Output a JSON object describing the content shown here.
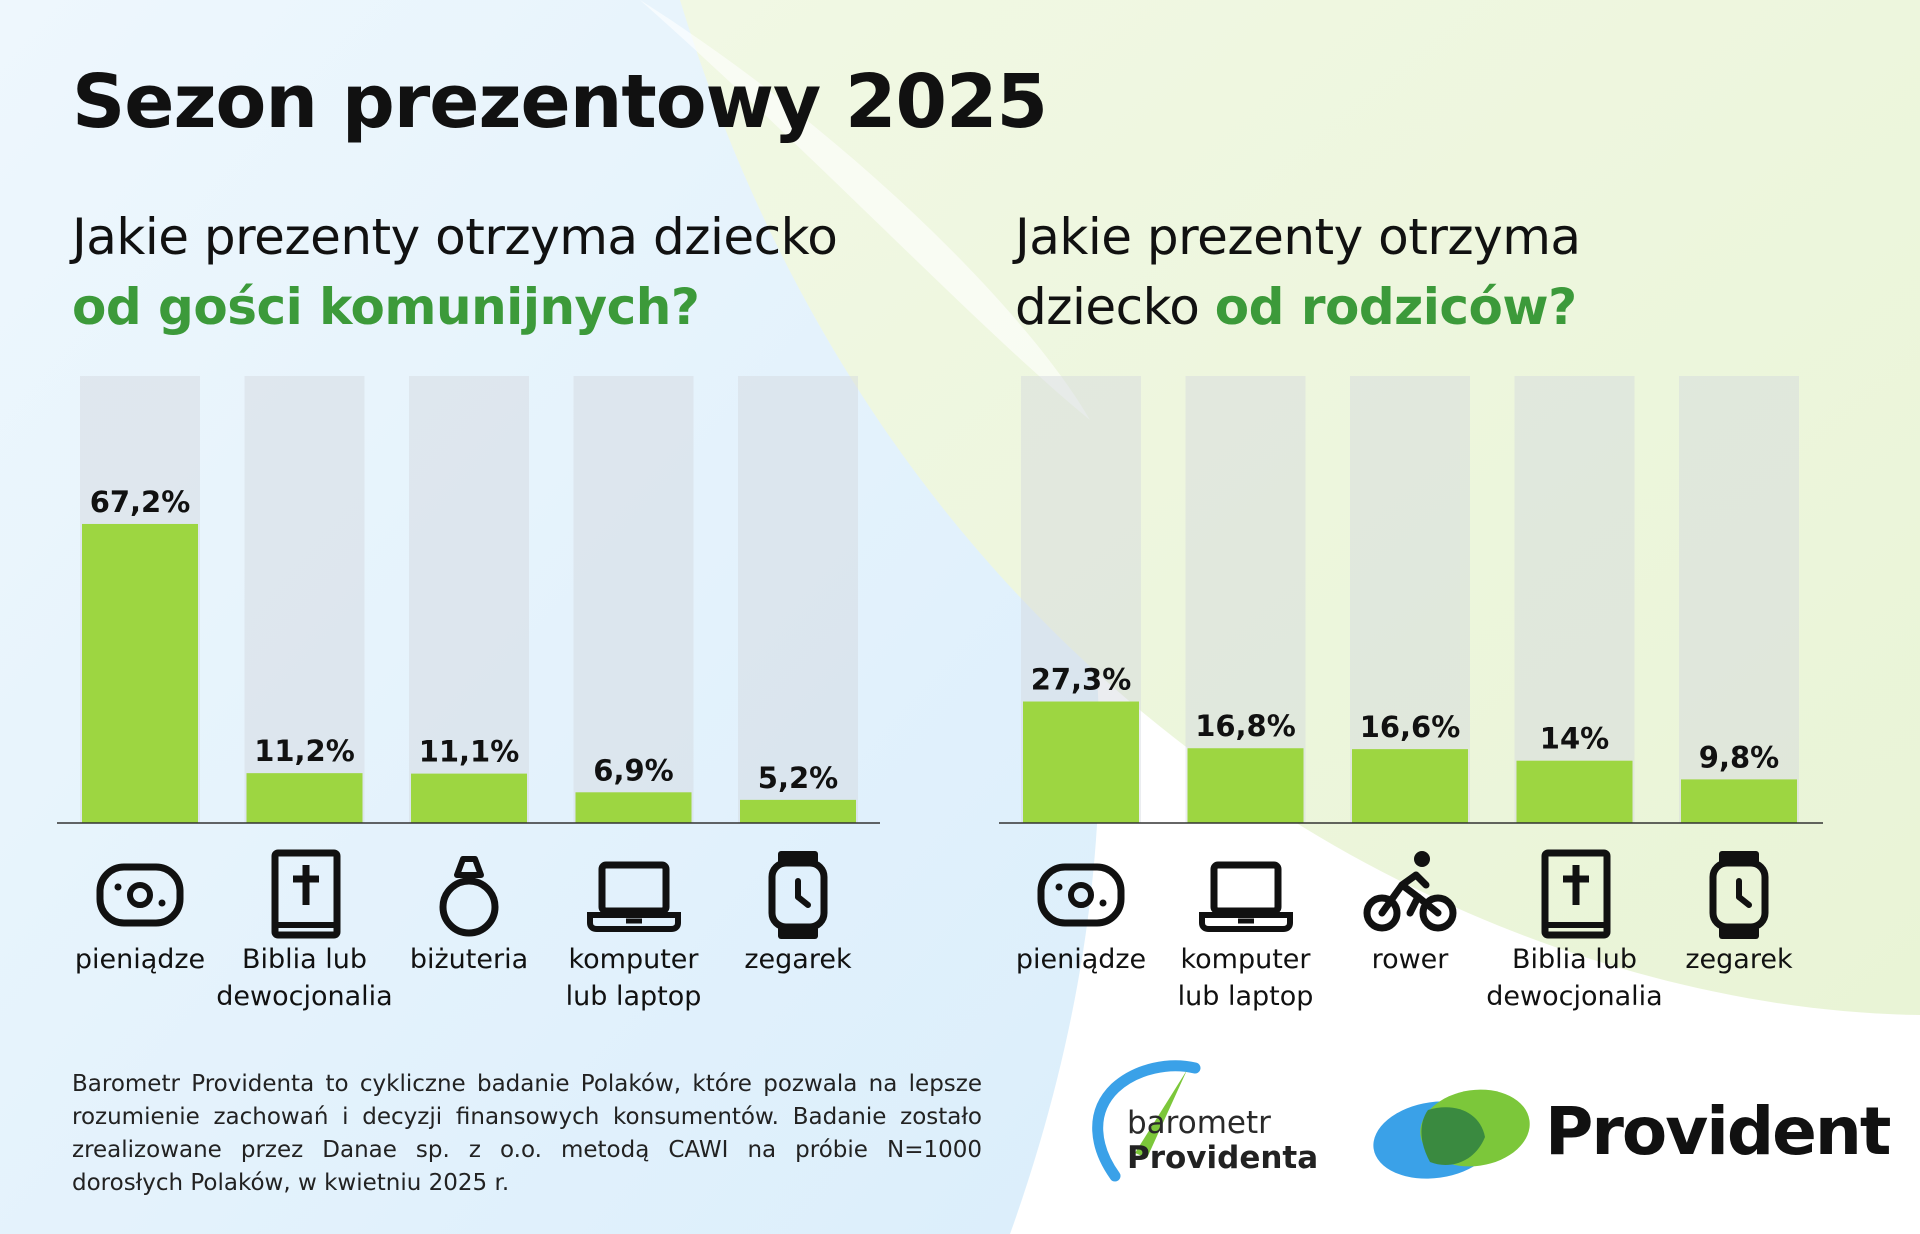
{
  "title": "Sezon prezentowy 2025",
  "left_chart": {
    "question_line1": "Jakie prezenty otrzyma dziecko",
    "question_highlight": "od gości komunijnych?"
  },
  "right_chart": {
    "question_prefix": "Jakie prezenty otrzyma",
    "question_line2_plain": "dziecko ",
    "question_highlight": "od rodziców?"
  },
  "chart_data": [
    {
      "type": "bar",
      "title": "Jakie prezenty otrzyma dziecko od gości komunijnych?",
      "categories": [
        "pieniądze",
        "Biblia lub dewocjonalia",
        "biżuteria",
        "komputer lub laptop",
        "zegarek"
      ],
      "category_lines": [
        [
          "pieniądze"
        ],
        [
          "Biblia lub",
          "dewocjonalia"
        ],
        [
          "biżuteria"
        ],
        [
          "komputer",
          "lub laptop"
        ],
        [
          "zegarek"
        ]
      ],
      "icons": [
        "money-icon",
        "bible-icon",
        "ring-icon",
        "laptop-icon",
        "watch-icon"
      ],
      "values": [
        67.2,
        11.2,
        11.1,
        6.9,
        5.2
      ],
      "labels": [
        "67,2%",
        "11,2%",
        "11,1%",
        "6,9%",
        "5,2%"
      ],
      "unit": "%",
      "ylim": [
        0,
        100
      ],
      "grid": false
    },
    {
      "type": "bar",
      "title": "Jakie prezenty otrzyma dziecko od rodziców?",
      "categories": [
        "pieniądze",
        "komputer lub laptop",
        "rower",
        "Biblia lub dewocjonalia",
        "zegarek"
      ],
      "category_lines": [
        [
          "pieniądze"
        ],
        [
          "komputer",
          "lub laptop"
        ],
        [
          "rower"
        ],
        [
          "Biblia lub",
          "dewocjonalia"
        ],
        [
          "zegarek"
        ]
      ],
      "icons": [
        "money-icon",
        "laptop-icon",
        "bike-icon",
        "bible-icon",
        "watch-icon"
      ],
      "values": [
        27.3,
        16.8,
        16.6,
        14,
        9.8
      ],
      "labels": [
        "27,3%",
        "16,8%",
        "16,6%",
        "14%",
        "9,8%"
      ],
      "unit": "%",
      "ylim": [
        0,
        100
      ],
      "grid": false
    }
  ],
  "colors": {
    "bar": "#9dd641",
    "track": "rgba(210,215,222,0.45)",
    "highlight_text": "#3c9a3a",
    "brand_blue": "#3aa1e8",
    "brand_green": "#7cc73a",
    "brand_dark_green": "#3a8a40"
  },
  "footnote": "Barometr Providenta to cykliczne badanie Polaków, które pozwala na lepsze rozumienie zachowań i decyzji finansowych konsumentów. Badanie zostało zrealizowane przez Danae sp. z o.o. metodą CAWI na próbie N=1000 dorosłych Polaków, w kwietniu 2025 r.",
  "logos": {
    "barometr_line1": "barometr",
    "barometr_line2": "Providenta",
    "provident": "Provident"
  }
}
